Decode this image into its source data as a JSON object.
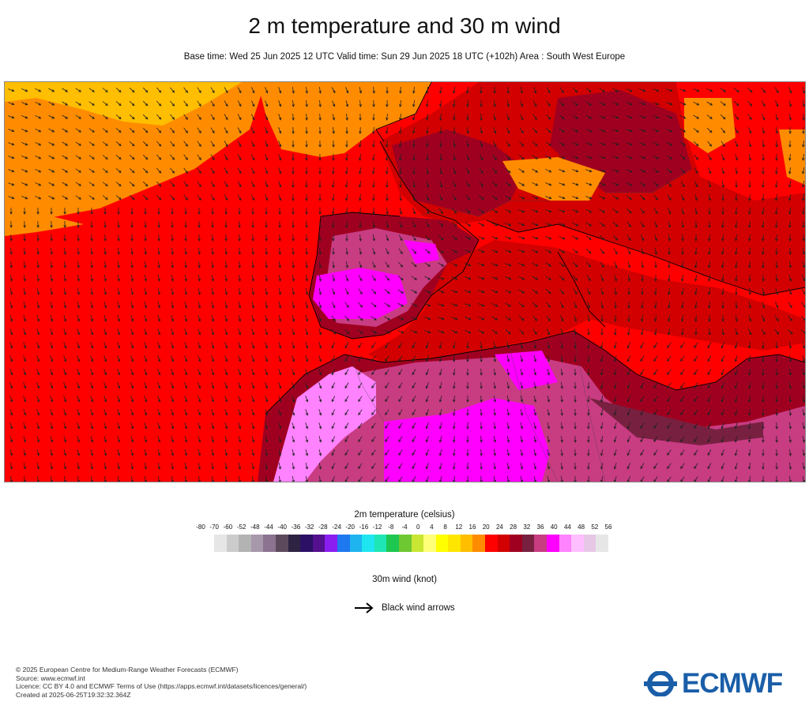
{
  "header": {
    "title": "2 m temperature and 30 m wind",
    "subtitle": "Base time: Wed 25 Jun 2025 12 UTC Valid time: Sun 29 Jun 2025 18 UTC (+102h) Area : South West Europe"
  },
  "map": {
    "region": "South West Europe",
    "wind_arrow_color": "#222222"
  },
  "legend": {
    "temperature_title": "2m temperature (celsius)",
    "ticks": [
      "-80",
      "-70",
      "-60",
      "-52",
      "-48",
      "-44",
      "-40",
      "-36",
      "-32",
      "-28",
      "-24",
      "-20",
      "-16",
      "-12",
      "-8",
      "-4",
      "0",
      "4",
      "8",
      "12",
      "16",
      "20",
      "24",
      "28",
      "32",
      "36",
      "40",
      "44",
      "48",
      "52",
      "56"
    ],
    "colors": [
      "#e6e6e6",
      "#cccccc",
      "#b3b3b3",
      "#a898ab",
      "#8c7390",
      "#5c4a5c",
      "#2d2342",
      "#2c1066",
      "#54108f",
      "#8a1ef0",
      "#1e78f0",
      "#1eb4f0",
      "#1ee6f0",
      "#1ee6b4",
      "#1ec850",
      "#6ec832",
      "#c8e632",
      "#ffff78",
      "#ffff00",
      "#ffe600",
      "#ffbe00",
      "#ff8c00",
      "#ff0000",
      "#d20000",
      "#a00020",
      "#782040",
      "#c83c82",
      "#ff00ff",
      "#ff82ff",
      "#ffbeff",
      "#e6c8e6",
      "#e6e6e6"
    ],
    "wind_title": "30m wind (knot)",
    "wind_label": "Black wind arrows"
  },
  "footer": {
    "lines": [
      "© 2025 European Centre for Medium-Range Weather Forecasts (ECMWF)",
      "Source: www.ecmwf.int",
      "Licence: CC BY 4.0 and ECMWF Terms of Use (https://apps.ecmwf.int/datasets/licences/general/)",
      "Created at 2025-06-25T19:32:32.364Z"
    ]
  },
  "logo": {
    "text": "ECMWF",
    "color": "#1a5ea8"
  }
}
